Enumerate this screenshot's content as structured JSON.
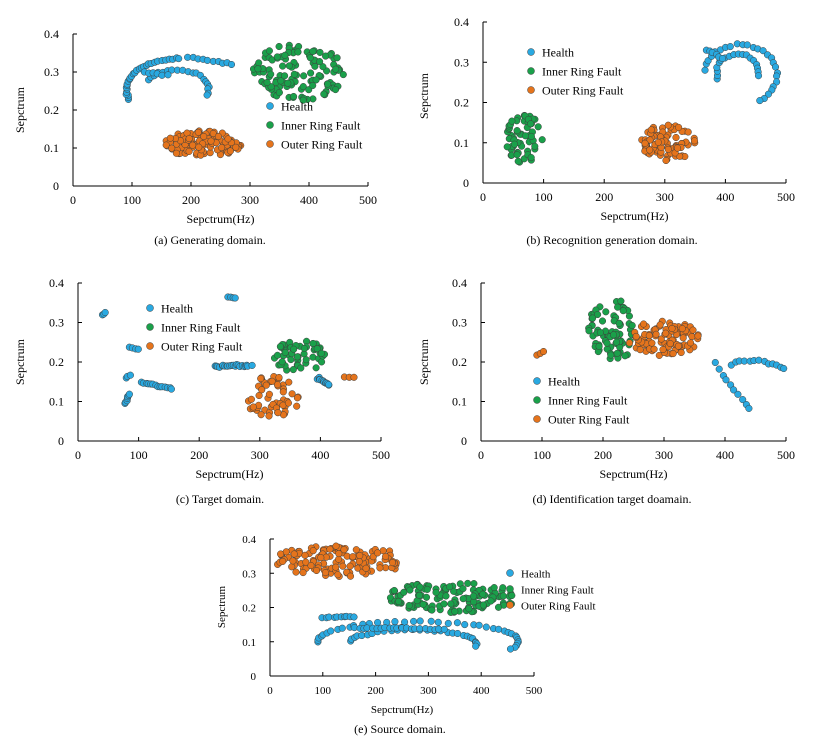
{
  "colors": {
    "Health": "#29a9e1",
    "Inner Ring Fault": "#1aa04a",
    "Outer Ring Fault": "#e5741c",
    "axis": "#000000",
    "marker_edge": "#3d3d3d"
  },
  "chart_data": [
    {
      "id": "a",
      "type": "scatter",
      "caption": "(a)  Generating domain.",
      "xlabel": "Sepctrum(Hz)",
      "ylabel": "Sepctrum",
      "xlim": [
        0,
        500
      ],
      "ylim": [
        0,
        0.4
      ],
      "xticks": [
        "0",
        "100",
        "200",
        "300",
        "400",
        "500"
      ],
      "yticks": [
        "0",
        "0.1",
        "0.2",
        "0.3",
        "0.4"
      ],
      "legend_position": "center-right",
      "series": [
        {
          "name": "Health",
          "clusters": [
            {
              "kind": "arc",
              "cx": 180,
              "cy": 0.255,
              "rx": 90,
              "ry": 0.08,
              "start": 200,
              "end": 90,
              "n": 30,
              "jitter": [
                4,
                0.005
              ]
            },
            {
              "kind": "arc",
              "cx": 175,
              "cy": 0.255,
              "rx": 55,
              "ry": 0.05,
              "start": 150,
              "end": -20,
              "n": 20,
              "jitter": [
                4,
                0.005
              ]
            },
            {
              "kind": "line",
              "x1": 195,
              "y1": 0.34,
              "x2": 270,
              "y2": 0.32,
              "n": 10,
              "jitter": [
                3,
                0.004
              ]
            },
            {
              "kind": "line",
              "x1": 120,
              "y1": 0.3,
              "x2": 160,
              "y2": 0.29,
              "n": 6,
              "jitter": [
                4,
                0.005
              ]
            }
          ]
        },
        {
          "name": "Inner Ring Fault",
          "clusters": [
            {
              "kind": "blob",
              "cx": 385,
              "cy": 0.3,
              "rx": 80,
              "ry": 0.075,
              "n": 120
            }
          ]
        },
        {
          "name": "Outer Ring Fault",
          "clusters": [
            {
              "kind": "blob",
              "cx": 220,
              "cy": 0.11,
              "rx": 65,
              "ry": 0.035,
              "n": 110
            }
          ]
        }
      ]
    },
    {
      "id": "b",
      "type": "scatter",
      "caption": "(b)  Recognition generation domain.",
      "xlabel": "Sepctrum(Hz)",
      "ylabel": "Sepctrum",
      "xlim": [
        0,
        500
      ],
      "ylim": [
        0,
        0.4
      ],
      "xticks": [
        "0",
        "100",
        "200",
        "300",
        "400",
        "500"
      ],
      "yticks": [
        "0",
        "0.1",
        "0.2",
        "0.3",
        "0.4"
      ],
      "legend_position": "top-left",
      "series": [
        {
          "name": "Health",
          "clusters": [
            {
              "kind": "arc",
              "cx": 425,
              "cy": 0.27,
              "rx": 60,
              "ry": 0.075,
              "start": 170,
              "end": -60,
              "n": 26,
              "jitter": [
                4,
                0.006
              ]
            },
            {
              "kind": "arc",
              "cx": 420,
              "cy": 0.275,
              "rx": 35,
              "ry": 0.045,
              "start": 200,
              "end": -10,
              "n": 18,
              "jitter": [
                3,
                0.005
              ]
            },
            {
              "kind": "line",
              "x1": 370,
              "y1": 0.33,
              "x2": 395,
              "y2": 0.31,
              "n": 6,
              "jitter": [
                3,
                0.005
              ]
            }
          ]
        },
        {
          "name": "Inner Ring Fault",
          "clusters": [
            {
              "kind": "blob",
              "cx": 68,
              "cy": 0.11,
              "rx": 30,
              "ry": 0.06,
              "n": 60
            }
          ]
        },
        {
          "name": "Outer Ring Fault",
          "clusters": [
            {
              "kind": "blob",
              "cx": 305,
              "cy": 0.1,
              "rx": 45,
              "ry": 0.045,
              "n": 80
            }
          ]
        }
      ]
    },
    {
      "id": "c",
      "type": "scatter",
      "caption": "(c)  Target domain.",
      "xlabel": "Sepctrum(Hz)",
      "ylabel": "Sepctrum",
      "xlim": [
        0,
        500
      ],
      "ylim": [
        0,
        0.4
      ],
      "xticks": [
        "0",
        "100",
        "200",
        "300",
        "400",
        "500"
      ],
      "yticks": [
        "0",
        "0.1",
        "0.2",
        "0.3",
        "0.4"
      ],
      "legend_position": "top-center",
      "series": [
        {
          "name": "Health",
          "clusters": [
            {
              "kind": "line",
              "x1": 40,
              "y1": 0.32,
              "x2": 45,
              "y2": 0.325,
              "n": 3,
              "jitter": [
                1,
                0.003
              ]
            },
            {
              "kind": "line",
              "x1": 78,
              "y1": 0.095,
              "x2": 85,
              "y2": 0.12,
              "n": 7,
              "jitter": [
                2,
                0.004
              ]
            },
            {
              "kind": "line",
              "x1": 80,
              "y1": 0.16,
              "x2": 86,
              "y2": 0.168,
              "n": 3,
              "jitter": [
                2,
                0.003
              ]
            },
            {
              "kind": "line",
              "x1": 85,
              "y1": 0.237,
              "x2": 100,
              "y2": 0.232,
              "n": 4,
              "jitter": [
                1,
                0.002
              ]
            },
            {
              "kind": "line",
              "x1": 105,
              "y1": 0.15,
              "x2": 155,
              "y2": 0.13,
              "n": 14,
              "jitter": [
                3,
                0.004
              ]
            },
            {
              "kind": "line",
              "x1": 225,
              "y1": 0.19,
              "x2": 285,
              "y2": 0.19,
              "n": 22,
              "jitter": [
                4,
                0.006
              ]
            },
            {
              "kind": "line",
              "x1": 248,
              "y1": 0.365,
              "x2": 260,
              "y2": 0.362,
              "n": 4,
              "jitter": [
                1,
                0.002
              ]
            },
            {
              "kind": "line",
              "x1": 395,
              "y1": 0.16,
              "x2": 415,
              "y2": 0.14,
              "n": 12,
              "jitter": [
                4,
                0.006
              ]
            }
          ]
        },
        {
          "name": "Inner Ring Fault",
          "clusters": [
            {
              "kind": "blob",
              "cx": 365,
              "cy": 0.215,
              "rx": 45,
              "ry": 0.04,
              "n": 55
            }
          ]
        },
        {
          "name": "Outer Ring Fault",
          "clusters": [
            {
              "kind": "blob",
              "cx": 320,
              "cy": 0.11,
              "rx": 45,
              "ry": 0.055,
              "n": 55
            },
            {
              "kind": "line",
              "x1": 440,
              "y1": 0.162,
              "x2": 455,
              "y2": 0.162,
              "n": 3,
              "jitter": [
                1,
                0.002
              ]
            }
          ]
        }
      ]
    },
    {
      "id": "d",
      "type": "scatter",
      "caption": "(d)  Identification target doamain.",
      "xlabel": "Sepctrum(Hz)",
      "ylabel": "Sepctrum",
      "xlim": [
        0,
        500
      ],
      "ylim": [
        0,
        0.4
      ],
      "xticks": [
        "0",
        "100",
        "200",
        "300",
        "400",
        "500"
      ],
      "yticks": [
        "0",
        "0.1",
        "0.2",
        "0.3",
        "0.4"
      ],
      "legend_position": "bottom-left",
      "series": [
        {
          "name": "Health",
          "clusters": [
            {
              "kind": "arc",
              "cx": 445,
              "cy": 0.13,
              "rx": 70,
              "ry": 0.075,
              "start": 120,
              "end": -30,
              "n": 24,
              "jitter": [
                3,
                0.006
              ]
            },
            {
              "kind": "line",
              "x1": 385,
              "y1": 0.195,
              "x2": 440,
              "y2": 0.08,
              "n": 10,
              "jitter": [
                3,
                0.006
              ]
            }
          ]
        },
        {
          "name": "Inner Ring Fault",
          "clusters": [
            {
              "kind": "blob",
              "cx": 215,
              "cy": 0.28,
              "rx": 40,
              "ry": 0.08,
              "n": 80
            }
          ]
        },
        {
          "name": "Outer Ring Fault",
          "clusters": [
            {
              "kind": "blob",
              "cx": 300,
              "cy": 0.26,
              "rx": 60,
              "ry": 0.045,
              "n": 95
            },
            {
              "kind": "line",
              "x1": 92,
              "y1": 0.218,
              "x2": 102,
              "y2": 0.226,
              "n": 3,
              "jitter": [
                1,
                0.002
              ]
            }
          ]
        }
      ]
    },
    {
      "id": "e",
      "type": "scatter",
      "caption": "(e)  Source domain.",
      "xlabel": "Sepctrum(Hz)",
      "ylabel": "Sepctrum",
      "xlim": [
        0,
        500
      ],
      "ylim": [
        0,
        0.4
      ],
      "xticks": [
        "0",
        "100",
        "200",
        "300",
        "400",
        "500"
      ],
      "yticks": [
        "0",
        "0.1",
        "0.2",
        "0.3",
        "0.4"
      ],
      "legend_position": "right",
      "series": [
        {
          "name": "Health",
          "clusters": [
            {
              "kind": "arc",
              "cx": 280,
              "cy": 0.1,
              "rx": 190,
              "ry": 0.06,
              "start": 180,
              "end": -20,
              "n": 40,
              "jitter": [
                5,
                0.005
              ]
            },
            {
              "kind": "arc",
              "cx": 270,
              "cy": 0.095,
              "rx": 120,
              "ry": 0.04,
              "start": 170,
              "end": -10,
              "n": 28,
              "jitter": [
                4,
                0.005
              ]
            },
            {
              "kind": "line",
              "x1": 100,
              "y1": 0.17,
              "x2": 160,
              "y2": 0.175,
              "n": 10,
              "jitter": [
                4,
                0.005
              ]
            },
            {
              "kind": "line",
              "x1": 160,
              "y1": 0.14,
              "x2": 250,
              "y2": 0.14,
              "n": 12,
              "jitter": [
                4,
                0.004
              ]
            },
            {
              "kind": "line",
              "x1": 250,
              "y1": 0.14,
              "x2": 330,
              "y2": 0.135,
              "n": 10,
              "jitter": [
                4,
                0.004
              ]
            }
          ]
        },
        {
          "name": "Inner Ring Fault",
          "clusters": [
            {
              "kind": "blob",
              "cx": 345,
              "cy": 0.23,
              "rx": 125,
              "ry": 0.045,
              "n": 130
            }
          ]
        },
        {
          "name": "Outer Ring Fault",
          "clusters": [
            {
              "kind": "blob",
              "cx": 130,
              "cy": 0.335,
              "rx": 130,
              "ry": 0.045,
              "n": 130
            }
          ]
        }
      ]
    }
  ]
}
